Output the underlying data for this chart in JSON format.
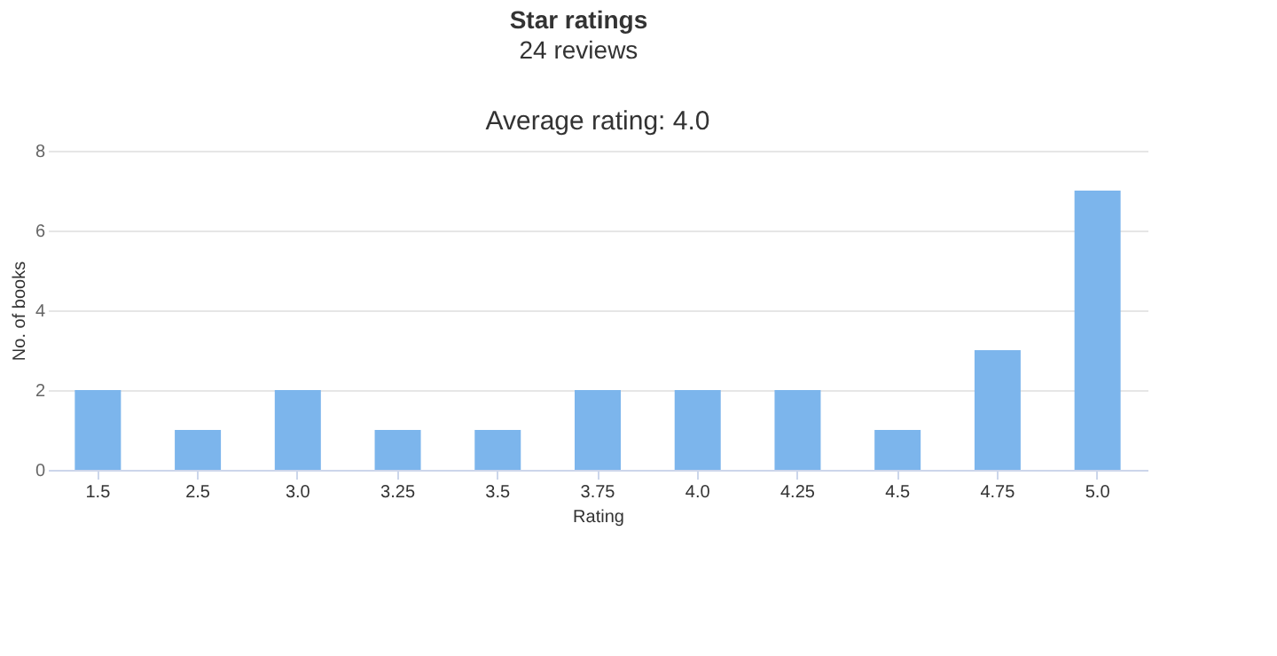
{
  "chart_data": {
    "type": "bar",
    "title": "Star ratings",
    "subtitle": "24 reviews",
    "annotations": [
      "Average rating: 4.0"
    ],
    "xlabel": "Rating",
    "ylabel": "No. of books",
    "categories": [
      "1.5",
      "2.5",
      "3.0",
      "3.25",
      "3.5",
      "3.75",
      "4.0",
      "4.25",
      "4.5",
      "4.75",
      "5.0"
    ],
    "values": [
      2,
      1,
      2,
      1,
      1,
      2,
      2,
      2,
      1,
      3,
      7
    ],
    "color": "#7cb5ec",
    "ylim": [
      0,
      8
    ],
    "yticks": [
      0,
      2,
      4,
      6,
      8
    ],
    "grid": "y"
  }
}
